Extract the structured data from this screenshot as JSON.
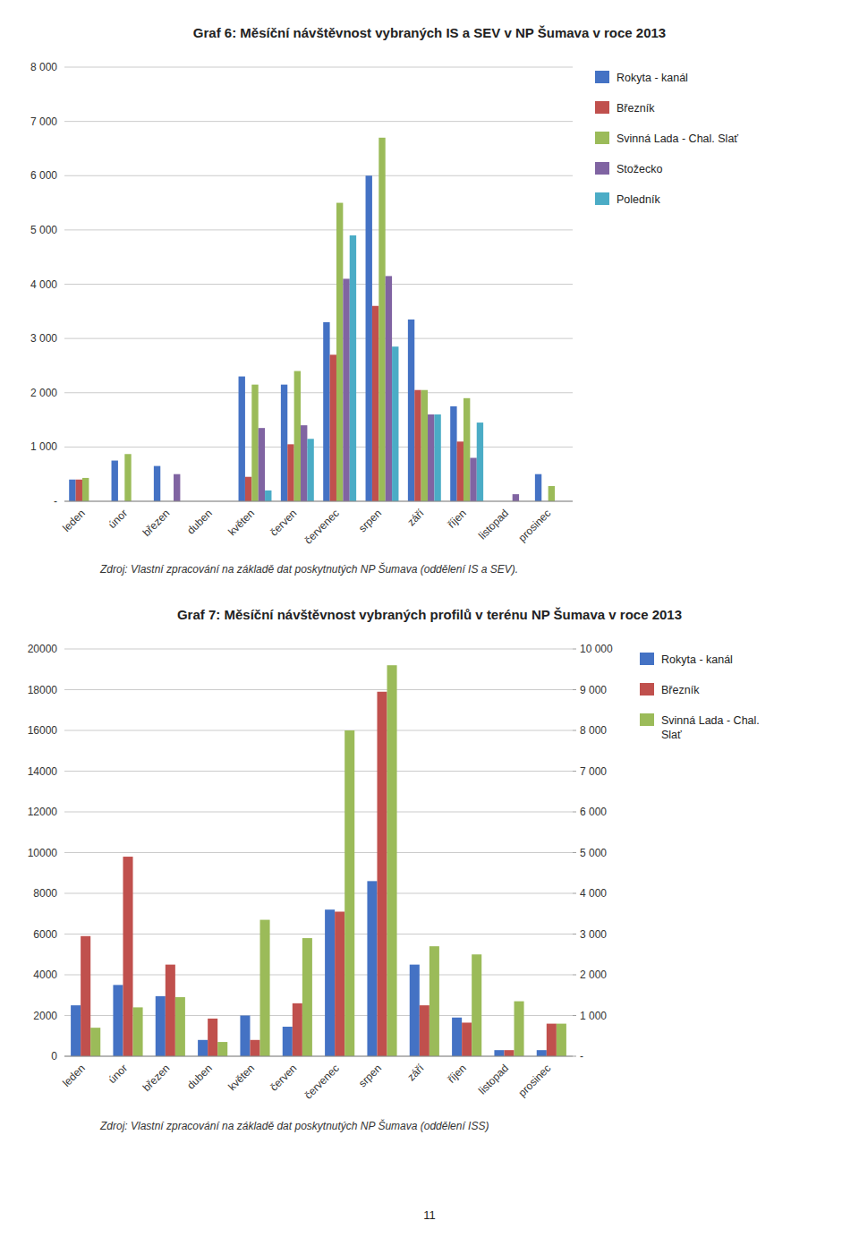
{
  "chart_data": [
    {
      "type": "bar",
      "title": "Graf 6: Měsíční návštěvnost vybraných IS a SEV v NP Šumava v roce 2013",
      "categories": [
        "leden",
        "únor",
        "březen",
        "duben",
        "květen",
        "červen",
        "červenec",
        "srpen",
        "září",
        "říjen",
        "listopad",
        "prosinec"
      ],
      "series": [
        {
          "name": "Rokyta - kanál",
          "color": "#4472C4",
          "values": [
            400,
            750,
            650,
            0,
            2300,
            2150,
            3300,
            6000,
            3350,
            1750,
            0,
            500
          ]
        },
        {
          "name": "Březník",
          "color": "#C0504D",
          "values": [
            400,
            0,
            0,
            0,
            450,
            1050,
            2700,
            3600,
            2050,
            1100,
            0,
            0
          ]
        },
        {
          "name": "Svinná Lada - Chal. Slať",
          "color": "#9BBB59",
          "values": [
            430,
            870,
            0,
            0,
            2150,
            2400,
            5500,
            6700,
            2050,
            1900,
            0,
            280
          ]
        },
        {
          "name": "Stožecko",
          "color": "#8064A2",
          "values": [
            0,
            0,
            500,
            0,
            1350,
            1400,
            4100,
            4150,
            1600,
            800,
            130,
            0
          ]
        },
        {
          "name": "Poledník",
          "color": "#4BACC6",
          "values": [
            0,
            0,
            0,
            0,
            200,
            1150,
            4900,
            2850,
            1600,
            1450,
            0,
            0
          ]
        }
      ],
      "ylim": [
        0,
        8000
      ],
      "yticks": [
        {
          "value": 0,
          "label": "-"
        },
        {
          "value": 1000,
          "label": "1 000"
        },
        {
          "value": 2000,
          "label": "2 000"
        },
        {
          "value": 3000,
          "label": "3 000"
        },
        {
          "value": 4000,
          "label": "4 000"
        },
        {
          "value": 5000,
          "label": "5 000"
        },
        {
          "value": 6000,
          "label": "6 000"
        },
        {
          "value": 7000,
          "label": "7 000"
        },
        {
          "value": 8000,
          "label": "8 000"
        }
      ],
      "grid": true,
      "legend": "right",
      "annotations": [
        "Zdroj: Vlastní zpracování na základě dat poskytnutých NP Šumava (oddělení IS a SEV)."
      ]
    },
    {
      "type": "bar",
      "title": "Graf 7: Měsíční návštěvnost vybraných profilů v terénu NP Šumava v roce 2013",
      "categories": [
        "leden",
        "únor",
        "březen",
        "duben",
        "květen",
        "červen",
        "červenec",
        "srpen",
        "září",
        "říjen",
        "listopad",
        "prosinec"
      ],
      "series": [
        {
          "name": "Rokyta - kanál",
          "color": "#4472C4",
          "values": [
            2500,
            3500,
            2950,
            800,
            2000,
            1450,
            7200,
            8600,
            4500,
            1900,
            300,
            300
          ]
        },
        {
          "name": "Březník",
          "color": "#C0504D",
          "values": [
            5900,
            9800,
            4500,
            1850,
            800,
            2600,
            7100,
            17900,
            2500,
            1650,
            300,
            1600
          ]
        },
        {
          "name": "Svinná Lada - Chal.\nSlať",
          "color": "#9BBB59",
          "axis": "y2",
          "values": [
            700,
            1200,
            1450,
            350,
            3350,
            2900,
            8000,
            9600,
            2700,
            2500,
            1350,
            800
          ]
        }
      ],
      "ylim": [
        0,
        20000
      ],
      "yticks": [
        0,
        2000,
        4000,
        6000,
        8000,
        10000,
        12000,
        14000,
        16000,
        18000,
        20000
      ],
      "y2lim": [
        0,
        10000
      ],
      "y2ticks": [
        {
          "value": 0,
          "label": "-"
        },
        {
          "value": 1000,
          "label": "1 000"
        },
        {
          "value": 2000,
          "label": "2 000"
        },
        {
          "value": 3000,
          "label": "3 000"
        },
        {
          "value": 4000,
          "label": "4 000"
        },
        {
          "value": 5000,
          "label": "5 000"
        },
        {
          "value": 6000,
          "label": "6 000"
        },
        {
          "value": 7000,
          "label": "7 000"
        },
        {
          "value": 8000,
          "label": "8 000"
        },
        {
          "value": 9000,
          "label": "9 000"
        },
        {
          "value": 10000,
          "label": "10 000"
        }
      ],
      "grid": true,
      "legend": "right",
      "annotations": [
        "Zdroj: Vlastní zpracování na základě dat poskytnutých NP Šumava (oddělení ISS)"
      ]
    }
  ],
  "page_number": "11"
}
